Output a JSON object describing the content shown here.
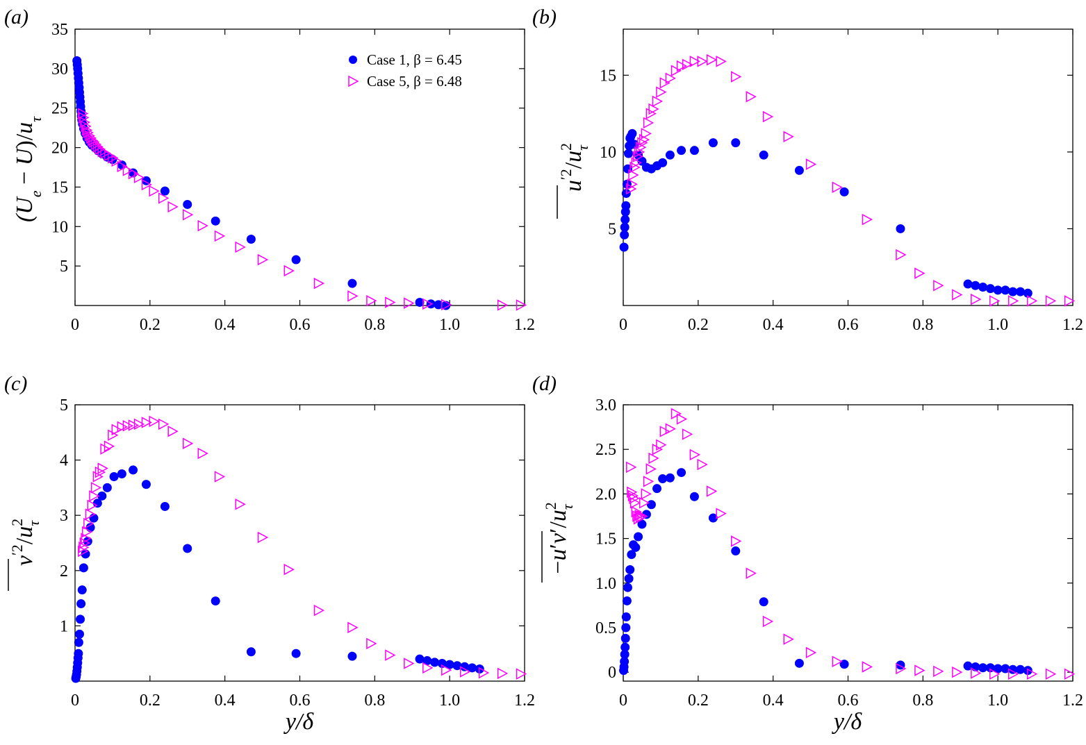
{
  "colors": {
    "case1": "#0000ff",
    "case5": "#ff00ff",
    "axis": "#000000"
  },
  "legend": [
    {
      "series": "case1",
      "text": "Case 1, β = 6.45",
      "marker": "filled-circle"
    },
    {
      "series": "case5",
      "text": "Case 5, β = 6.48",
      "marker": "open-triangle-right"
    }
  ],
  "chart_data": [
    {
      "panel": "(a)",
      "type": "scatter",
      "ylabel": "(Ue − U)/uτ",
      "xlabel": "",
      "xlim": [
        0,
        1.2
      ],
      "ylim": [
        0,
        35
      ],
      "xticks": [
        "0",
        "0.2",
        "0.4",
        "0.6",
        "0.8",
        "1.0",
        "1.2"
      ],
      "yticks": [
        "5",
        "10",
        "15",
        "20",
        "25",
        "30",
        "35"
      ],
      "ytick_values": [
        5,
        10,
        15,
        20,
        25,
        30,
        35
      ],
      "legend": "top-right",
      "series": [
        {
          "key": "case1",
          "name": "Case 1, β = 6.45",
          "x": [
            0.005,
            0.006,
            0.007,
            0.008,
            0.009,
            0.01,
            0.011,
            0.012,
            0.013,
            0.014,
            0.015,
            0.016,
            0.017,
            0.018,
            0.02,
            0.023,
            0.027,
            0.032,
            0.038,
            0.045,
            0.053,
            0.062,
            0.073,
            0.086,
            0.1,
            0.125,
            0.155,
            0.19,
            0.24,
            0.3,
            0.375,
            0.47,
            0.59,
            0.74,
            0.92,
            0.95,
            0.97,
            0.99
          ],
          "y": [
            31.0,
            30.5,
            30.0,
            29.4,
            28.8,
            28.2,
            27.6,
            27.0,
            26.4,
            25.8,
            25.2,
            24.6,
            24.0,
            23.5,
            23.0,
            22.4,
            21.8,
            21.2,
            20.7,
            20.3,
            20.0,
            19.6,
            19.2,
            18.8,
            18.5,
            17.8,
            16.8,
            15.8,
            14.5,
            12.8,
            10.7,
            8.4,
            5.8,
            2.8,
            0.4,
            0.2,
            0.1,
            0.0
          ]
        },
        {
          "key": "case5",
          "name": "Case 5, β = 6.48",
          "x": [
            0.02,
            0.022,
            0.025,
            0.028,
            0.031,
            0.034,
            0.038,
            0.042,
            0.046,
            0.05,
            0.055,
            0.06,
            0.066,
            0.073,
            0.08,
            0.09,
            0.1,
            0.11,
            0.125,
            0.14,
            0.155,
            0.17,
            0.19,
            0.21,
            0.235,
            0.26,
            0.3,
            0.34,
            0.385,
            0.44,
            0.5,
            0.57,
            0.65,
            0.74,
            0.79,
            0.84,
            0.89,
            0.94,
            0.99,
            1.14,
            1.19
          ],
          "y": [
            24.3,
            23.8,
            23.2,
            22.7,
            22.2,
            21.9,
            21.5,
            21.2,
            20.9,
            20.7,
            20.4,
            20.1,
            19.8,
            19.5,
            19.3,
            19.0,
            18.7,
            18.3,
            17.6,
            17.1,
            16.7,
            16.2,
            15.3,
            14.5,
            13.6,
            12.5,
            11.5,
            10.1,
            8.8,
            7.4,
            5.8,
            4.4,
            2.8,
            1.2,
            0.6,
            0.4,
            0.3,
            0.2,
            0.1,
            0.05,
            0.05
          ]
        }
      ]
    },
    {
      "panel": "(b)",
      "type": "scatter",
      "ylabel": "u′²/uτ²",
      "xlabel": "",
      "xlim": [
        0,
        1.2
      ],
      "ylim": [
        0,
        18
      ],
      "xticks": [
        "0",
        "0.2",
        "0.4",
        "0.6",
        "0.8",
        "1.0",
        "1.2"
      ],
      "yticks": [
        "5",
        "10",
        "15"
      ],
      "ytick_values": [
        5,
        10,
        15
      ],
      "series": [
        {
          "key": "case1",
          "name": "Case 1, β = 6.45",
          "x": [
            0.002,
            0.003,
            0.004,
            0.005,
            0.006,
            0.007,
            0.008,
            0.01,
            0.012,
            0.014,
            0.016,
            0.018,
            0.02,
            0.024,
            0.03,
            0.04,
            0.05,
            0.062,
            0.075,
            0.09,
            0.105,
            0.125,
            0.155,
            0.19,
            0.24,
            0.3,
            0.375,
            0.47,
            0.59,
            0.74,
            0.92,
            0.94,
            0.96,
            0.98,
            1.0,
            1.02,
            1.04,
            1.06,
            1.08
          ],
          "y": [
            3.8,
            4.6,
            5.1,
            5.6,
            6.1,
            6.5,
            7.3,
            7.9,
            8.9,
            9.9,
            10.4,
            10.9,
            11.0,
            11.2,
            10.5,
            9.8,
            9.4,
            9.0,
            8.9,
            9.1,
            9.3,
            9.8,
            10.1,
            10.1,
            10.6,
            10.6,
            9.8,
            8.8,
            7.4,
            5.0,
            1.4,
            1.3,
            1.2,
            1.1,
            1.0,
            1.0,
            0.9,
            0.9,
            0.8
          ]
        },
        {
          "key": "case5",
          "name": "Case 5, β = 6.48",
          "x": [
            0.02,
            0.023,
            0.026,
            0.03,
            0.034,
            0.038,
            0.042,
            0.046,
            0.05,
            0.055,
            0.06,
            0.066,
            0.073,
            0.08,
            0.09,
            0.1,
            0.11,
            0.125,
            0.14,
            0.155,
            0.17,
            0.19,
            0.21,
            0.235,
            0.26,
            0.3,
            0.34,
            0.385,
            0.44,
            0.5,
            0.57,
            0.65,
            0.74,
            0.79,
            0.84,
            0.89,
            0.94,
            0.99,
            1.04,
            1.09,
            1.14,
            1.19
          ],
          "y": [
            7.6,
            7.9,
            8.5,
            9.0,
            9.3,
            9.7,
            10.0,
            10.3,
            10.6,
            10.8,
            11.2,
            11.9,
            12.5,
            12.8,
            13.3,
            13.9,
            14.5,
            14.8,
            15.3,
            15.6,
            15.7,
            15.9,
            15.9,
            16.0,
            15.9,
            14.9,
            13.6,
            12.3,
            11.0,
            9.2,
            7.7,
            5.6,
            3.3,
            2.1,
            1.3,
            0.7,
            0.4,
            0.3,
            0.3,
            0.3,
            0.3,
            0.3
          ]
        }
      ]
    },
    {
      "panel": "(c)",
      "type": "scatter",
      "ylabel": "v′²/uτ²",
      "xlabel": "y/δ",
      "xlim": [
        0,
        1.2
      ],
      "ylim": [
        0,
        5
      ],
      "xticks": [
        "0",
        "0.2",
        "0.4",
        "0.6",
        "0.8",
        "1.0",
        "1.2"
      ],
      "yticks": [
        "1",
        "2",
        "3",
        "4",
        "5"
      ],
      "ytick_values": [
        1,
        2,
        3,
        4,
        5
      ],
      "series": [
        {
          "key": "case1",
          "name": "Case 1, β = 6.45",
          "x": [
            0.002,
            0.003,
            0.004,
            0.005,
            0.006,
            0.007,
            0.008,
            0.009,
            0.01,
            0.012,
            0.014,
            0.016,
            0.019,
            0.023,
            0.028,
            0.034,
            0.041,
            0.05,
            0.06,
            0.072,
            0.086,
            0.104,
            0.125,
            0.155,
            0.19,
            0.24,
            0.3,
            0.375,
            0.47,
            0.59,
            0.74,
            0.92,
            0.94,
            0.96,
            0.98,
            1.0,
            1.02,
            1.04,
            1.06,
            1.08
          ],
          "y": [
            0.05,
            0.08,
            0.12,
            0.18,
            0.25,
            0.33,
            0.42,
            0.5,
            0.7,
            0.85,
            1.12,
            1.4,
            1.65,
            2.05,
            2.3,
            2.53,
            2.78,
            2.95,
            3.22,
            3.35,
            3.5,
            3.7,
            3.75,
            3.82,
            3.56,
            3.16,
            2.4,
            1.45,
            0.53,
            0.5,
            0.45,
            0.4,
            0.37,
            0.34,
            0.32,
            0.3,
            0.28,
            0.26,
            0.24,
            0.22
          ]
        },
        {
          "key": "case5",
          "name": "Case 5, β = 6.48",
          "x": [
            0.02,
            0.022,
            0.025,
            0.028,
            0.031,
            0.035,
            0.04,
            0.045,
            0.05,
            0.055,
            0.06,
            0.066,
            0.073,
            0.08,
            0.09,
            0.1,
            0.11,
            0.125,
            0.14,
            0.155,
            0.17,
            0.19,
            0.21,
            0.235,
            0.26,
            0.3,
            0.34,
            0.385,
            0.44,
            0.5,
            0.57,
            0.65,
            0.74,
            0.79,
            0.84,
            0.89,
            0.94,
            0.99,
            1.04,
            1.09,
            1.14,
            1.19
          ],
          "y": [
            2.35,
            2.42,
            2.5,
            2.58,
            2.7,
            2.85,
            3.02,
            3.18,
            3.35,
            3.5,
            3.7,
            3.78,
            3.85,
            4.2,
            4.25,
            4.45,
            4.55,
            4.6,
            4.62,
            4.63,
            4.65,
            4.68,
            4.7,
            4.65,
            4.52,
            4.3,
            4.12,
            3.7,
            3.2,
            2.6,
            2.02,
            1.28,
            0.97,
            0.68,
            0.47,
            0.32,
            0.24,
            0.2,
            0.17,
            0.15,
            0.14,
            0.13
          ]
        }
      ]
    },
    {
      "panel": "(d)",
      "type": "scatter",
      "ylabel": "−u′v′/uτ²",
      "xlabel": "y/δ",
      "xlim": [
        0,
        1.2
      ],
      "ylim": [
        -0.1,
        3.0
      ],
      "xticks": [
        "0",
        "0.2",
        "0.4",
        "0.6",
        "0.8",
        "1.0",
        "1.2"
      ],
      "yticks": [
        "0",
        "0.5",
        "1.0",
        "1.5",
        "2.0",
        "2.5",
        "3.0"
      ],
      "ytick_values": [
        0,
        0.5,
        1.0,
        1.5,
        2.0,
        2.5,
        3.0
      ],
      "series": [
        {
          "key": "case1",
          "name": "Case 1, β = 6.45",
          "x": [
            0.001,
            0.002,
            0.003,
            0.004,
            0.005,
            0.006,
            0.007,
            0.008,
            0.01,
            0.012,
            0.015,
            0.018,
            0.022,
            0.027,
            0.033,
            0.04,
            0.05,
            0.062,
            0.075,
            0.09,
            0.105,
            0.125,
            0.155,
            0.19,
            0.24,
            0.3,
            0.375,
            0.47,
            0.59,
            0.74,
            0.92,
            0.94,
            0.96,
            0.98,
            1.0,
            1.02,
            1.04,
            1.06,
            1.08
          ],
          "y": [
            0.02,
            0.06,
            0.12,
            0.2,
            0.28,
            0.38,
            0.5,
            0.62,
            0.8,
            0.95,
            1.05,
            1.15,
            1.32,
            1.43,
            1.4,
            1.52,
            1.66,
            1.77,
            1.88,
            2.06,
            2.17,
            2.18,
            2.24,
            1.97,
            1.73,
            1.36,
            0.79,
            0.1,
            0.09,
            0.08,
            0.07,
            0.06,
            0.05,
            0.05,
            0.04,
            0.04,
            0.03,
            0.03,
            0.02
          ]
        },
        {
          "key": "case5",
          "name": "Case 5, β = 6.48",
          "x": [
            0.02,
            0.022,
            0.025,
            0.028,
            0.031,
            0.034,
            0.037,
            0.04,
            0.043,
            0.046,
            0.05,
            0.055,
            0.06,
            0.066,
            0.073,
            0.08,
            0.09,
            0.1,
            0.11,
            0.125,
            0.14,
            0.155,
            0.17,
            0.19,
            0.21,
            0.235,
            0.26,
            0.3,
            0.34,
            0.385,
            0.44,
            0.5,
            0.57,
            0.65,
            0.74,
            0.79,
            0.84,
            0.89,
            0.94,
            0.99,
            1.04,
            1.09,
            1.14,
            1.19
          ],
          "y": [
            2.3,
            2.02,
            1.98,
            1.95,
            1.9,
            1.8,
            1.75,
            1.72,
            1.76,
            1.74,
            1.75,
            1.9,
            2.0,
            2.14,
            2.28,
            2.4,
            2.5,
            2.55,
            2.7,
            2.73,
            2.9,
            2.84,
            2.67,
            2.44,
            2.33,
            2.03,
            1.78,
            1.47,
            1.11,
            0.57,
            0.37,
            0.22,
            0.12,
            0.06,
            0.04,
            0.02,
            0.01,
            0.0,
            -0.01,
            -0.02,
            -0.02,
            -0.02,
            -0.02,
            -0.02
          ]
        }
      ]
    }
  ]
}
